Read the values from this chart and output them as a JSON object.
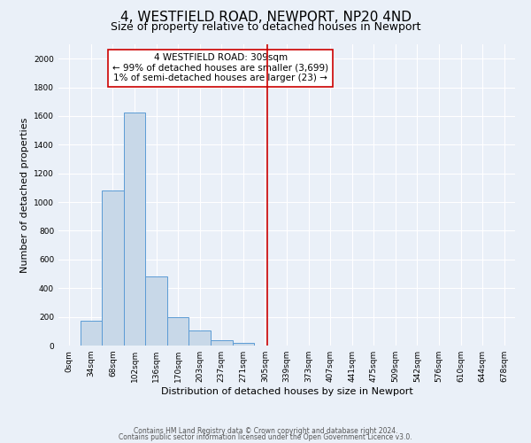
{
  "title": "4, WESTFIELD ROAD, NEWPORT, NP20 4ND",
  "subtitle": "Size of property relative to detached houses in Newport",
  "xlabel": "Distribution of detached houses by size in Newport",
  "ylabel": "Number of detached properties",
  "bar_labels": [
    "0sqm",
    "34sqm",
    "68sqm",
    "102sqm",
    "136sqm",
    "170sqm",
    "203sqm",
    "237sqm",
    "271sqm",
    "305sqm",
    "339sqm",
    "373sqm",
    "407sqm",
    "441sqm",
    "475sqm",
    "509sqm",
    "542sqm",
    "576sqm",
    "610sqm",
    "644sqm",
    "678sqm"
  ],
  "bar_values": [
    0,
    170,
    1080,
    1625,
    480,
    200,
    105,
    35,
    20,
    0,
    0,
    0,
    0,
    0,
    0,
    0,
    0,
    0,
    0,
    0,
    0
  ],
  "bar_color": "#c8d8e8",
  "bar_edge_color": "#5b9bd5",
  "vline_x": 9.1,
  "vline_color": "#cc0000",
  "annotation_title": "4 WESTFIELD ROAD: 309sqm",
  "annotation_line1": "← 99% of detached houses are smaller (3,699)",
  "annotation_line2": "1% of semi-detached houses are larger (23) →",
  "annotation_border_color": "#cc0000",
  "ylim": [
    0,
    2100
  ],
  "yticks": [
    0,
    200,
    400,
    600,
    800,
    1000,
    1200,
    1400,
    1600,
    1800,
    2000
  ],
  "footer1": "Contains HM Land Registry data © Crown copyright and database right 2024.",
  "footer2": "Contains public sector information licensed under the Open Government Licence v3.0.",
  "background_color": "#eaf0f8",
  "plot_background_color": "#eaf0f8",
  "grid_color": "#ffffff",
  "title_fontsize": 11,
  "subtitle_fontsize": 9,
  "axis_label_fontsize": 8,
  "tick_fontsize": 6.5,
  "footer_fontsize": 5.5,
  "ann_fontsize": 7.5
}
